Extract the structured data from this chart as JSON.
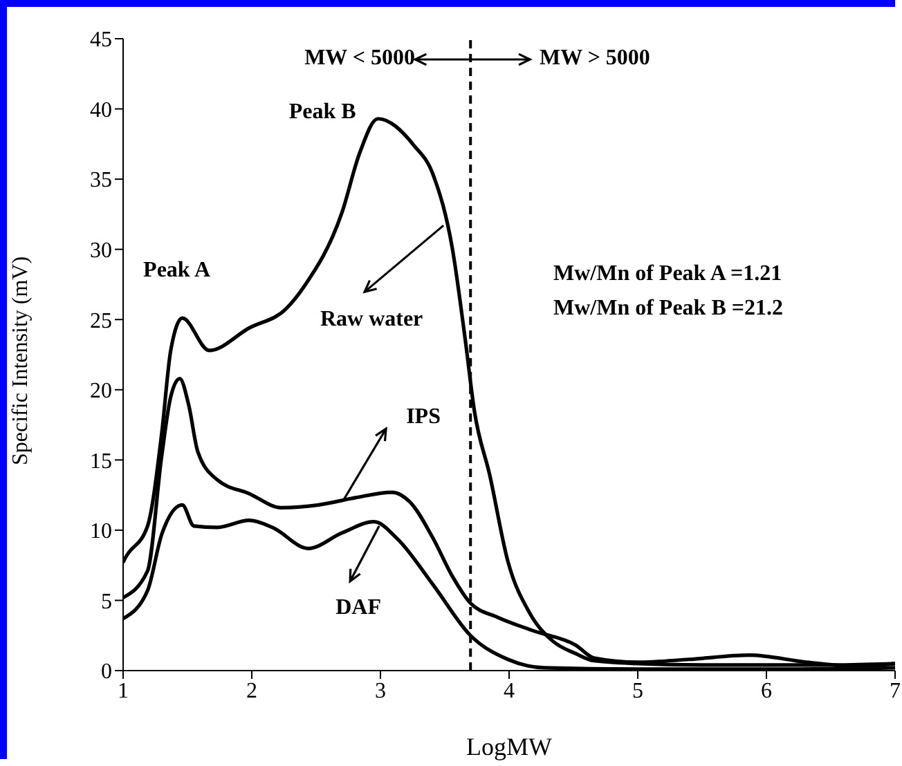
{
  "chart_data": {
    "type": "line",
    "xlabel": "LogMW",
    "ylabel": "Specific Intensity (mV)",
    "xlim": [
      1,
      7
    ],
    "xticks": [
      1,
      2,
      3,
      4,
      5,
      6,
      7
    ],
    "ylim": [
      0,
      45
    ],
    "yticks": [
      0,
      5,
      10,
      15,
      20,
      25,
      30,
      35,
      40,
      45
    ],
    "series": [
      {
        "color": "#000000",
        "x": [
          1,
          1.01,
          1.19,
          1.3,
          1.37,
          1.46,
          1.67,
          1.98,
          2.27,
          2.41,
          2.7,
          2.84,
          2.98,
          3.26,
          3.41,
          3.56,
          3.66,
          3.73,
          3.85,
          3.99,
          4.16,
          4.34,
          4.52,
          4.66,
          5,
          5.5,
          6,
          6.5,
          7
        ],
        "values": [
          7.7,
          7.9,
          10.3,
          16.9,
          22.8,
          25.1,
          22.8,
          24.4,
          25.8,
          27.4,
          32.6,
          36.9,
          39.3,
          37.4,
          35.3,
          30,
          23.5,
          18.5,
          13.9,
          7.8,
          4.1,
          2.1,
          1.2,
          0.7,
          0.5,
          0.4,
          0.4,
          0.4,
          0.5
        ]
      },
      {
        "color": "#000000",
        "x": [
          1,
          1.19,
          1.3,
          1.37,
          1.44,
          1.51,
          1.58,
          1.73,
          1.98,
          2.23,
          2.52,
          2.8,
          3.09,
          3.23,
          3.41,
          3.56,
          3.7,
          3.91,
          4.2,
          4.52,
          4.66,
          5,
          5.4,
          5.87,
          6.31,
          6.7,
          7
        ],
        "values": [
          5.2,
          7.1,
          15.3,
          19.5,
          20.8,
          18.9,
          15.6,
          13.6,
          12.6,
          11.6,
          11.8,
          12.3,
          12.7,
          12,
          9.4,
          6.7,
          4.8,
          3.8,
          2.8,
          1.8,
          0.9,
          0.6,
          0.8,
          1.1,
          0.6,
          0.3,
          0.5
        ]
      },
      {
        "color": "#000000",
        "x": [
          1,
          1.19,
          1.3,
          1.46,
          1.55,
          1.73,
          1.98,
          2.16,
          2.44,
          2.7,
          2.95,
          3.13,
          3.41,
          3.7,
          3.99,
          4.27,
          5,
          6,
          7
        ],
        "values": [
          3.7,
          5.7,
          9.7,
          11.8,
          10.3,
          10.2,
          10.7,
          10.2,
          8.7,
          9.8,
          10.6,
          9.4,
          6.1,
          2.5,
          0.8,
          0.2,
          0.1,
          0.1,
          0.2
        ]
      }
    ],
    "ref_lines": [
      {
        "axis": "x",
        "value": 3.7,
        "color": "#000000",
        "line_style": "dashed"
      }
    ],
    "annotations": [
      {
        "text": "Peak A",
        "x": 1.46,
        "y": 25.1
      },
      {
        "text": "Peak B",
        "x": 2.98,
        "y": 39.3
      },
      {
        "text": "Raw water",
        "x": 3.49,
        "y": 31.7
      },
      {
        "text": "IPS",
        "x": 2.71,
        "y": 12.1
      },
      {
        "text": "DAF",
        "x": 2.99,
        "y": 10.3
      },
      "MW < 5000",
      "MW > 5000",
      "Mw/Mn of Peak A =1.21",
      "Mw/Mn of Peak B =21.2"
    ]
  }
}
